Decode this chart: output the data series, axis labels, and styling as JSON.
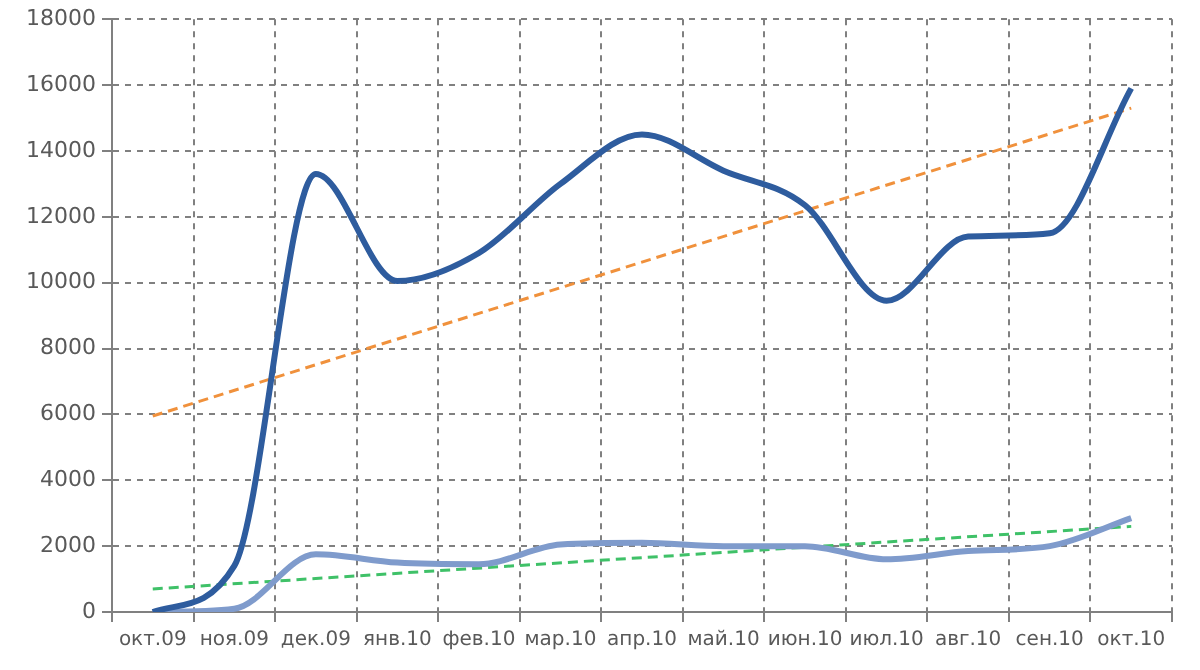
{
  "chart_data": {
    "type": "line",
    "categories": [
      "окт.09",
      "ноя.09",
      "дек.09",
      "янв.10",
      "фев.10",
      "мар.10",
      "апр.10",
      "май.10",
      "июн.10",
      "июл.10",
      "авг.10",
      "сен.10",
      "окт.10"
    ],
    "series": [
      {
        "color": "#2e5c9e",
        "values": [
          0,
          1400,
          13300,
          10050,
          10900,
          13000,
          14500,
          13400,
          12350,
          9450,
          11400,
          11500,
          15900
        ]
      },
      {
        "color": "#7f9bcc",
        "values": [
          0,
          100,
          1750,
          1500,
          1450,
          2050,
          2100,
          2000,
          2000,
          1600,
          1850,
          2000,
          2850
        ]
      },
      {
        "color": "#f0913c",
        "line_style": "dashed",
        "x": [
          "окт.09",
          "окт.10"
        ],
        "values": [
          5950,
          15300
        ]
      },
      {
        "color": "#3fc168",
        "line_style": "dashed",
        "x": [
          "окт.09",
          "окт.10"
        ],
        "values": [
          700,
          2600
        ]
      }
    ],
    "ylim": [
      0,
      18000
    ],
    "yticks": [
      0,
      2000,
      4000,
      6000,
      8000,
      10000,
      12000,
      14000,
      16000,
      18000
    ],
    "grid": true,
    "legend": false,
    "marker": "none"
  }
}
